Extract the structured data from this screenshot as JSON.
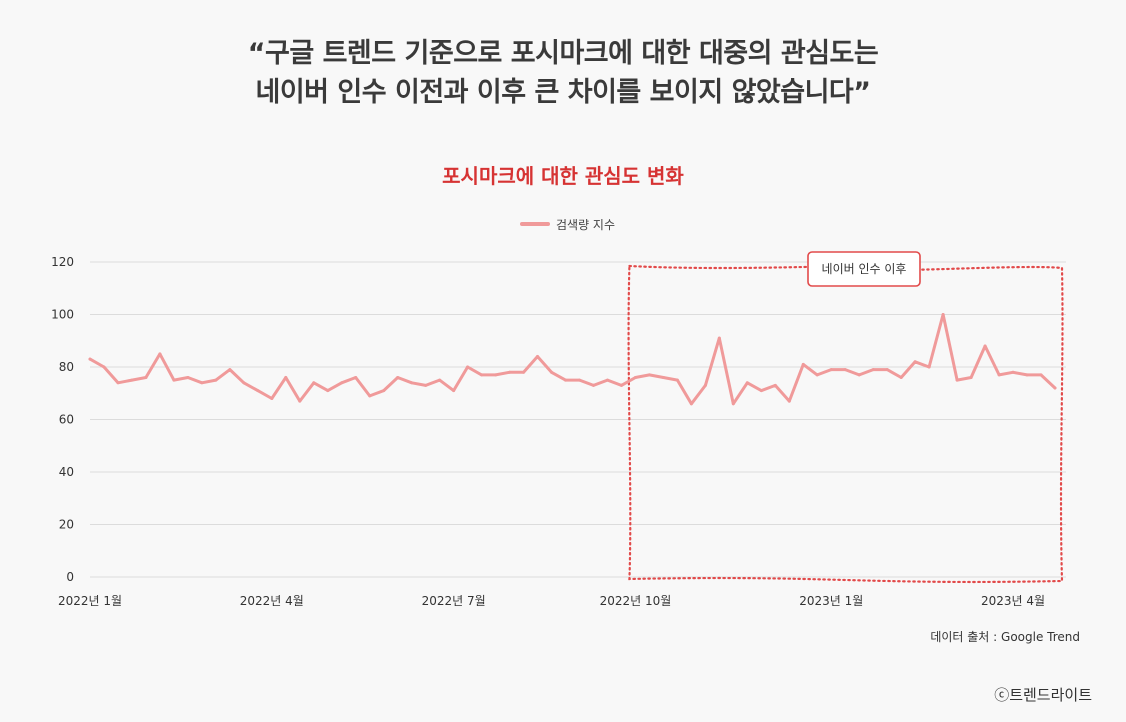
{
  "headline": {
    "line1": "“구글 트렌드 기준으로 포시마크에 대한 대중의 관심도는",
    "line2": "네이버 인수 이전과 이후 큰 차이를 보이지 않았습니다”"
  },
  "source_label": "데이터 출처 : Google Trend",
  "copyright": "ⓒ트렌드라이트",
  "chart_data": {
    "type": "line",
    "title": "포시마크에 대한 관심도 변화",
    "legend": "top-center",
    "grid": true,
    "ylim": [
      0,
      120
    ],
    "yticks": [
      0,
      20,
      40,
      60,
      80,
      100,
      120
    ],
    "xtick_labels": [
      "2022년 1월",
      "2022년 4월",
      "2022년 7월",
      "2022년 10월",
      "2023년 1월",
      "2023년 4월"
    ],
    "xtick_index": [
      0,
      13,
      26,
      39,
      53,
      66
    ],
    "series": [
      {
        "name": "검색량 지수",
        "color": "#f09a9a",
        "values": [
          83,
          80,
          74,
          75,
          76,
          85,
          75,
          76,
          74,
          75,
          79,
          74,
          71,
          68,
          76,
          67,
          74,
          71,
          74,
          76,
          69,
          71,
          76,
          74,
          73,
          75,
          71,
          80,
          77,
          77,
          78,
          78,
          84,
          78,
          75,
          75,
          73,
          75,
          73,
          76,
          77,
          76,
          75,
          66,
          73,
          91,
          66,
          74,
          71,
          73,
          67,
          81,
          77,
          79,
          79,
          77,
          79,
          79,
          76,
          82,
          80,
          100,
          75,
          76,
          88,
          77,
          78,
          77,
          77,
          72
        ]
      }
    ],
    "annotation": {
      "label": "네이버 인수 이후",
      "start_index": 39,
      "color": "#e24a4a"
    }
  }
}
